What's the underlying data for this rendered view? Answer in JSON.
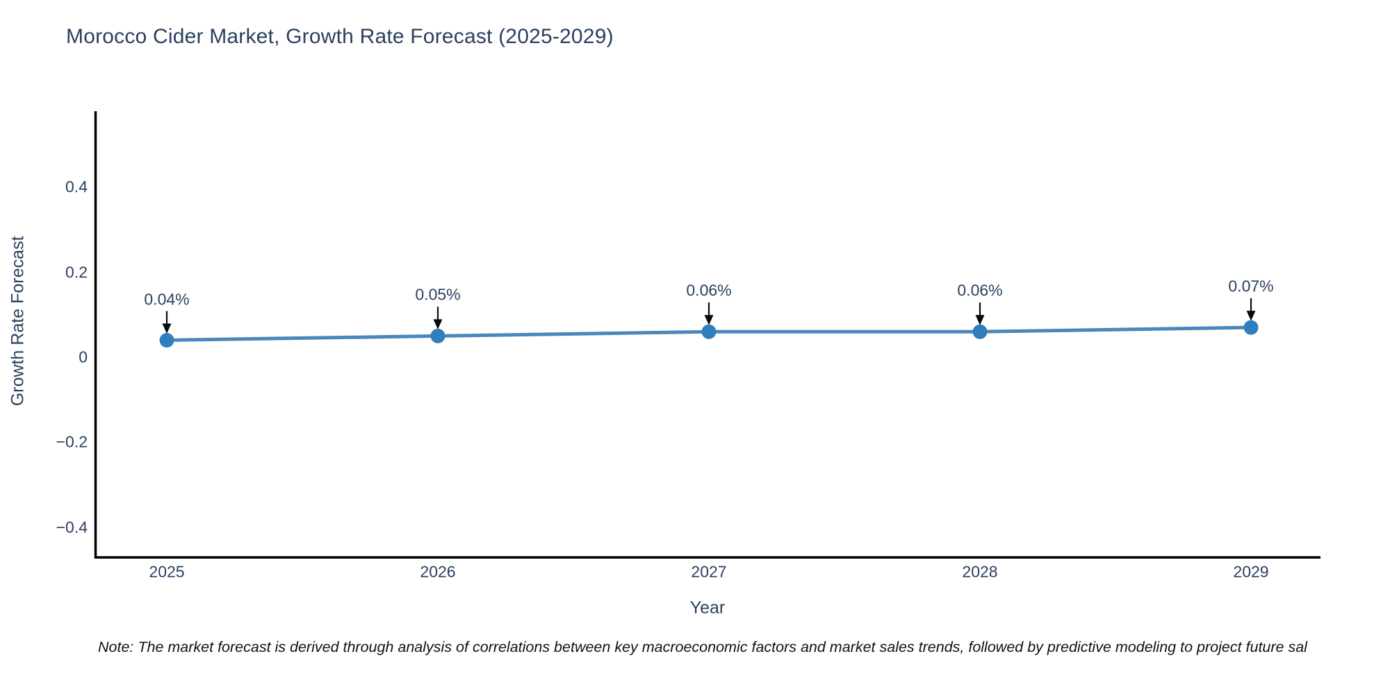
{
  "chart_data": {
    "type": "line",
    "title": "Morocco Cider Market, Growth Rate Forecast (2025-2029)",
    "xlabel": "Year",
    "ylabel": "Growth Rate Forecast",
    "x": [
      2025,
      2026,
      2027,
      2028,
      2029
    ],
    "y": [
      0.04,
      0.05,
      0.06,
      0.06,
      0.07
    ],
    "point_labels": [
      "0.04%",
      "0.05%",
      "0.06%",
      "0.06%",
      "0.07%"
    ],
    "xtick_labels": [
      "2025",
      "2026",
      "2027",
      "2028",
      "2029"
    ],
    "ytick_values": [
      0.4,
      0.2,
      0,
      -0.2,
      -0.4
    ],
    "ytick_labels": [
      "0.4",
      "0.2",
      "0",
      "−0.2",
      "−0.4"
    ],
    "ylim": [
      -0.47,
      0.58
    ],
    "grid": false,
    "legend": "none",
    "annotations": "downward arrows from value labels to markers",
    "line_color": "#4a87bb",
    "marker_color": "#2f7ebe",
    "axis_color": "#000000",
    "arrow_color": "#0a0a0a",
    "text_color": "#2a3f5f"
  },
  "note": "Note: The market forecast is derived through analysis of correlations between key macroeconomic factors and market sales trends, followed by predictive modeling to project future sal"
}
